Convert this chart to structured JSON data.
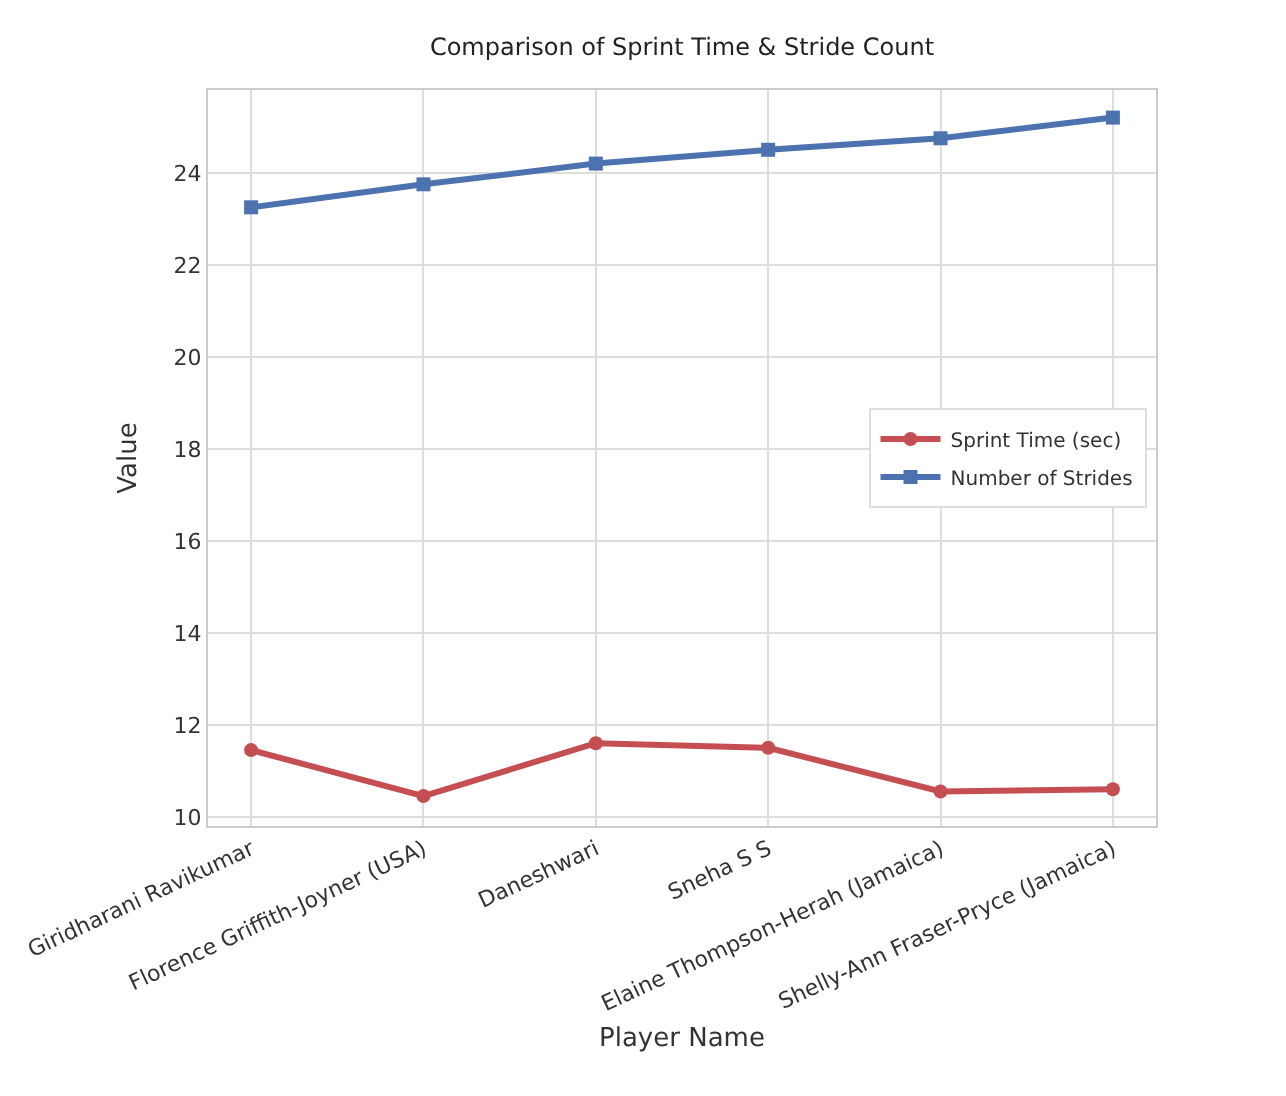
{
  "chart_data": {
    "type": "line",
    "title": "Comparison of Sprint Time & Stride Count",
    "xlabel": "Player Name",
    "ylabel": "Value",
    "categories": [
      "Giridharani Ravikumar",
      "Florence Griffith-Joyner (USA)",
      "Daneshwari",
      "Sneha S S",
      "Elaine Thompson-Herah (Jamaica)",
      "Shelly-Ann Fraser-Pryce (Jamaica)"
    ],
    "series": [
      {
        "name": "Sprint Time (sec)",
        "color": "#c44e52",
        "marker": "circle",
        "values": [
          11.45,
          10.45,
          11.6,
          11.5,
          10.55,
          10.6
        ]
      },
      {
        "name": "Number of Strides",
        "color": "#4c72b0",
        "marker": "square",
        "values": [
          23.25,
          23.75,
          24.2,
          24.5,
          24.75,
          25.2
        ]
      }
    ],
    "ylim": [
      9.8,
      25.8
    ],
    "yticks": [
      10,
      12,
      14,
      16,
      18,
      20,
      22,
      24
    ],
    "grid": true,
    "legend": "right",
    "line_style": "solid"
  }
}
